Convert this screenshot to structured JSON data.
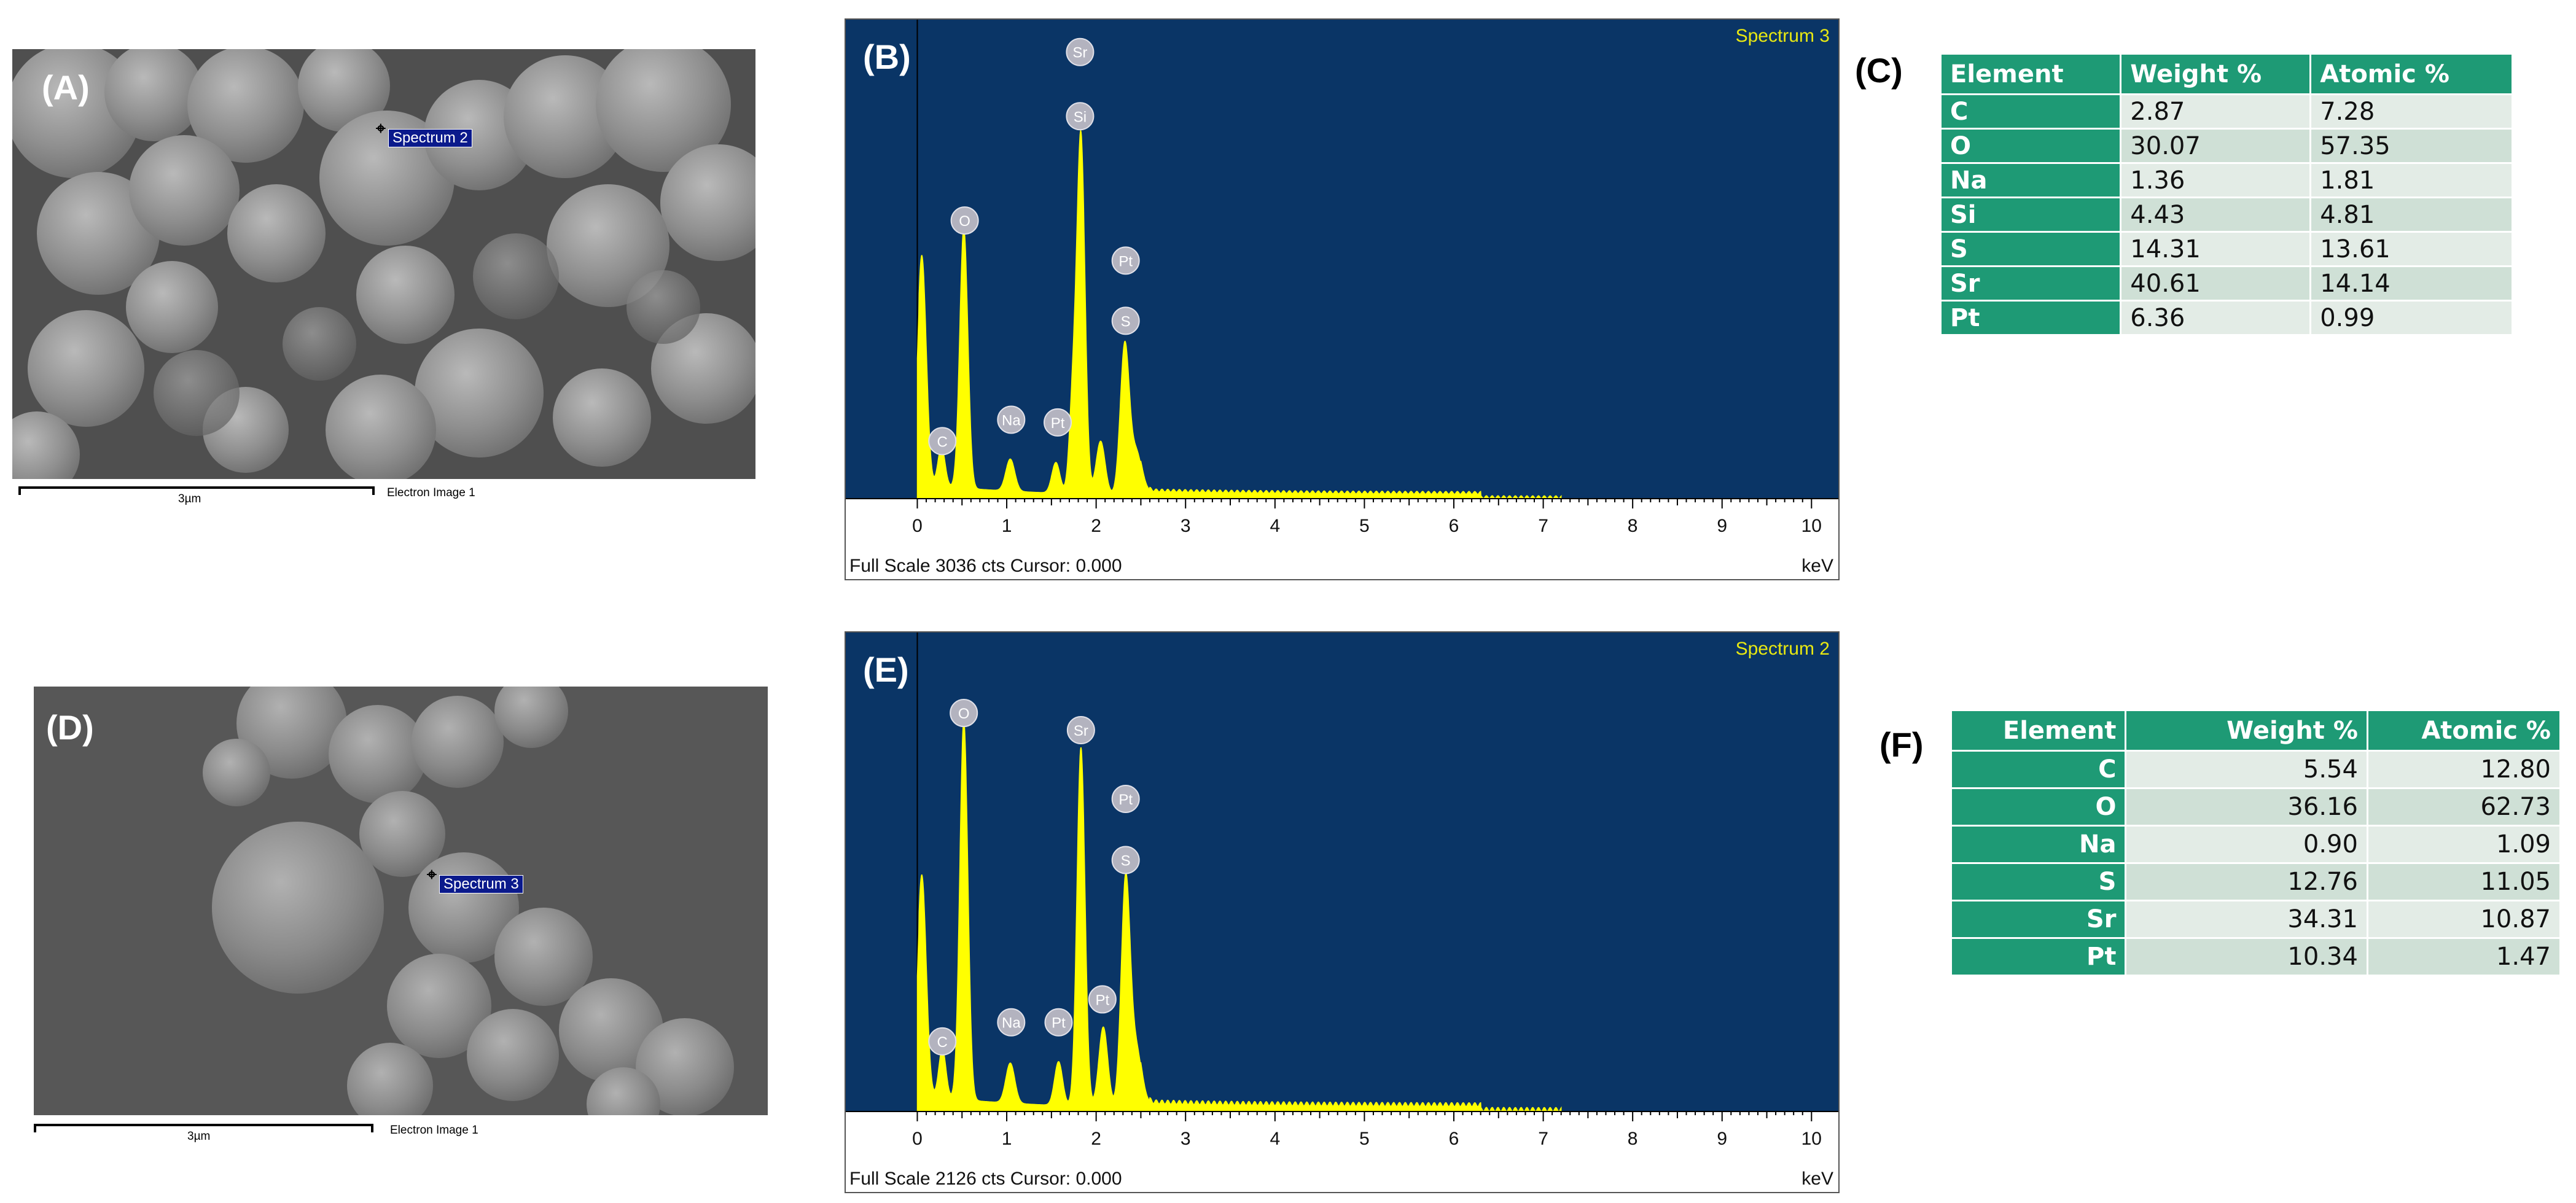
{
  "panels": {
    "A": {
      "tag": "(A)",
      "marker": "Spectrum 2",
      "scalebar": "3µm",
      "caption": "Electron Image 1"
    },
    "B": {
      "tag": "(B)",
      "spectrum_title": "Spectrum 3",
      "footer_left": "Full Scale 3036 cts Cursor: 0.000",
      "footer_right": "keV"
    },
    "C": {
      "tag": "(C)",
      "headers": [
        "Element",
        "Weight %",
        "Atomic %"
      ],
      "rows": [
        [
          "C",
          "2.87",
          "7.28"
        ],
        [
          "O",
          "30.07",
          "57.35"
        ],
        [
          "Na",
          "1.36",
          "1.81"
        ],
        [
          "Si",
          "4.43",
          "4.81"
        ],
        [
          "S",
          "14.31",
          "13.61"
        ],
        [
          "Sr",
          "40.61",
          "14.14"
        ],
        [
          "Pt",
          "6.36",
          "0.99"
        ]
      ]
    },
    "D": {
      "tag": "(D)",
      "marker": "Spectrum 3",
      "scalebar": "3µm",
      "caption": "Electron Image 1"
    },
    "E": {
      "tag": "(E)",
      "spectrum_title": "Spectrum 2",
      "footer_left": "Full Scale 2126 cts Cursor: 0.000",
      "footer_right": "keV"
    },
    "F": {
      "tag": "(F)",
      "headers": [
        "Element",
        "Weight %",
        "Atomic %"
      ],
      "rows": [
        [
          "C",
          "5.54",
          "12.80"
        ],
        [
          "O",
          "36.16",
          "62.73"
        ],
        [
          "Na",
          "0.90",
          "1.09"
        ],
        [
          "S",
          "12.76",
          "11.05"
        ],
        [
          "Sr",
          "34.31",
          "10.87"
        ],
        [
          "Pt",
          "10.34",
          "1.47"
        ]
      ]
    }
  },
  "chart_data": [
    {
      "type": "line",
      "panel": "B",
      "title": "Spectrum 3",
      "xlabel": "keV",
      "xlim": [
        -0.8,
        10.3
      ],
      "ylim": [
        0,
        3036
      ],
      "xticks": [
        "0",
        "1",
        "2",
        "3",
        "4",
        "5",
        "6",
        "7",
        "8",
        "9",
        "10"
      ],
      "plot_color": "#0a3566",
      "line_color": "#ffff00",
      "peaks": [
        {
          "x": 0.05,
          "y": 1730,
          "width": 0.05
        },
        {
          "x": 0.27,
          "y": 300,
          "width": 0.04
        },
        {
          "x": 0.52,
          "y": 1950,
          "width": 0.045
        },
        {
          "x": 1.04,
          "y": 240,
          "width": 0.05
        },
        {
          "x": 1.55,
          "y": 230,
          "width": 0.045
        },
        {
          "x": 1.74,
          "y": 690,
          "width": 0.04
        },
        {
          "x": 1.83,
          "y": 2660,
          "width": 0.045
        },
        {
          "x": 2.05,
          "y": 400,
          "width": 0.05
        },
        {
          "x": 2.32,
          "y": 1120,
          "width": 0.05
        },
        {
          "x": 2.45,
          "y": 320,
          "width": 0.06
        }
      ],
      "background": 90,
      "peak_labels": [
        {
          "label": "C",
          "x": 0.28,
          "y": 320
        },
        {
          "label": "O",
          "x": 0.53,
          "y": 1970
        },
        {
          "label": "Na",
          "x": 1.05,
          "y": 480
        },
        {
          "label": "Pt",
          "x": 1.57,
          "y": 460
        },
        {
          "label": "Si",
          "x": 1.82,
          "y": 2750
        },
        {
          "label": "Sr",
          "x": 1.82,
          "y": 3230
        },
        {
          "label": "S",
          "x": 2.33,
          "y": 1220
        },
        {
          "label": "Pt",
          "x": 2.33,
          "y": 1670
        }
      ]
    },
    {
      "type": "line",
      "panel": "E",
      "title": "Spectrum 2",
      "xlabel": "keV",
      "xlim": [
        -0.8,
        10.3
      ],
      "ylim": [
        0,
        2126
      ],
      "xticks": [
        "0",
        "1",
        "2",
        "3",
        "4",
        "5",
        "6",
        "7",
        "8",
        "9",
        "10"
      ],
      "plot_color": "#0a3566",
      "line_color": "#ffff00",
      "peaks": [
        {
          "x": 0.05,
          "y": 1170,
          "width": 0.05
        },
        {
          "x": 0.28,
          "y": 260,
          "width": 0.04
        },
        {
          "x": 0.52,
          "y": 1990,
          "width": 0.045
        },
        {
          "x": 1.04,
          "y": 210,
          "width": 0.05
        },
        {
          "x": 1.58,
          "y": 230,
          "width": 0.045
        },
        {
          "x": 1.83,
          "y": 1880,
          "width": 0.045
        },
        {
          "x": 2.08,
          "y": 420,
          "width": 0.05
        },
        {
          "x": 2.33,
          "y": 1190,
          "width": 0.05
        },
        {
          "x": 2.45,
          "y": 300,
          "width": 0.06
        }
      ],
      "background": 70,
      "peak_labels": [
        {
          "label": "C",
          "x": 0.28,
          "y": 290
        },
        {
          "label": "O",
          "x": 0.52,
          "y": 2010
        },
        {
          "label": "Na",
          "x": 1.05,
          "y": 390
        },
        {
          "label": "Pt",
          "x": 1.58,
          "y": 390
        },
        {
          "label": "Pt",
          "x": 2.07,
          "y": 510
        },
        {
          "label": "Sr",
          "x": 1.83,
          "y": 1920
        },
        {
          "label": "S",
          "x": 2.33,
          "y": 1240
        },
        {
          "label": "Pt",
          "x": 2.33,
          "y": 1560
        }
      ]
    }
  ]
}
